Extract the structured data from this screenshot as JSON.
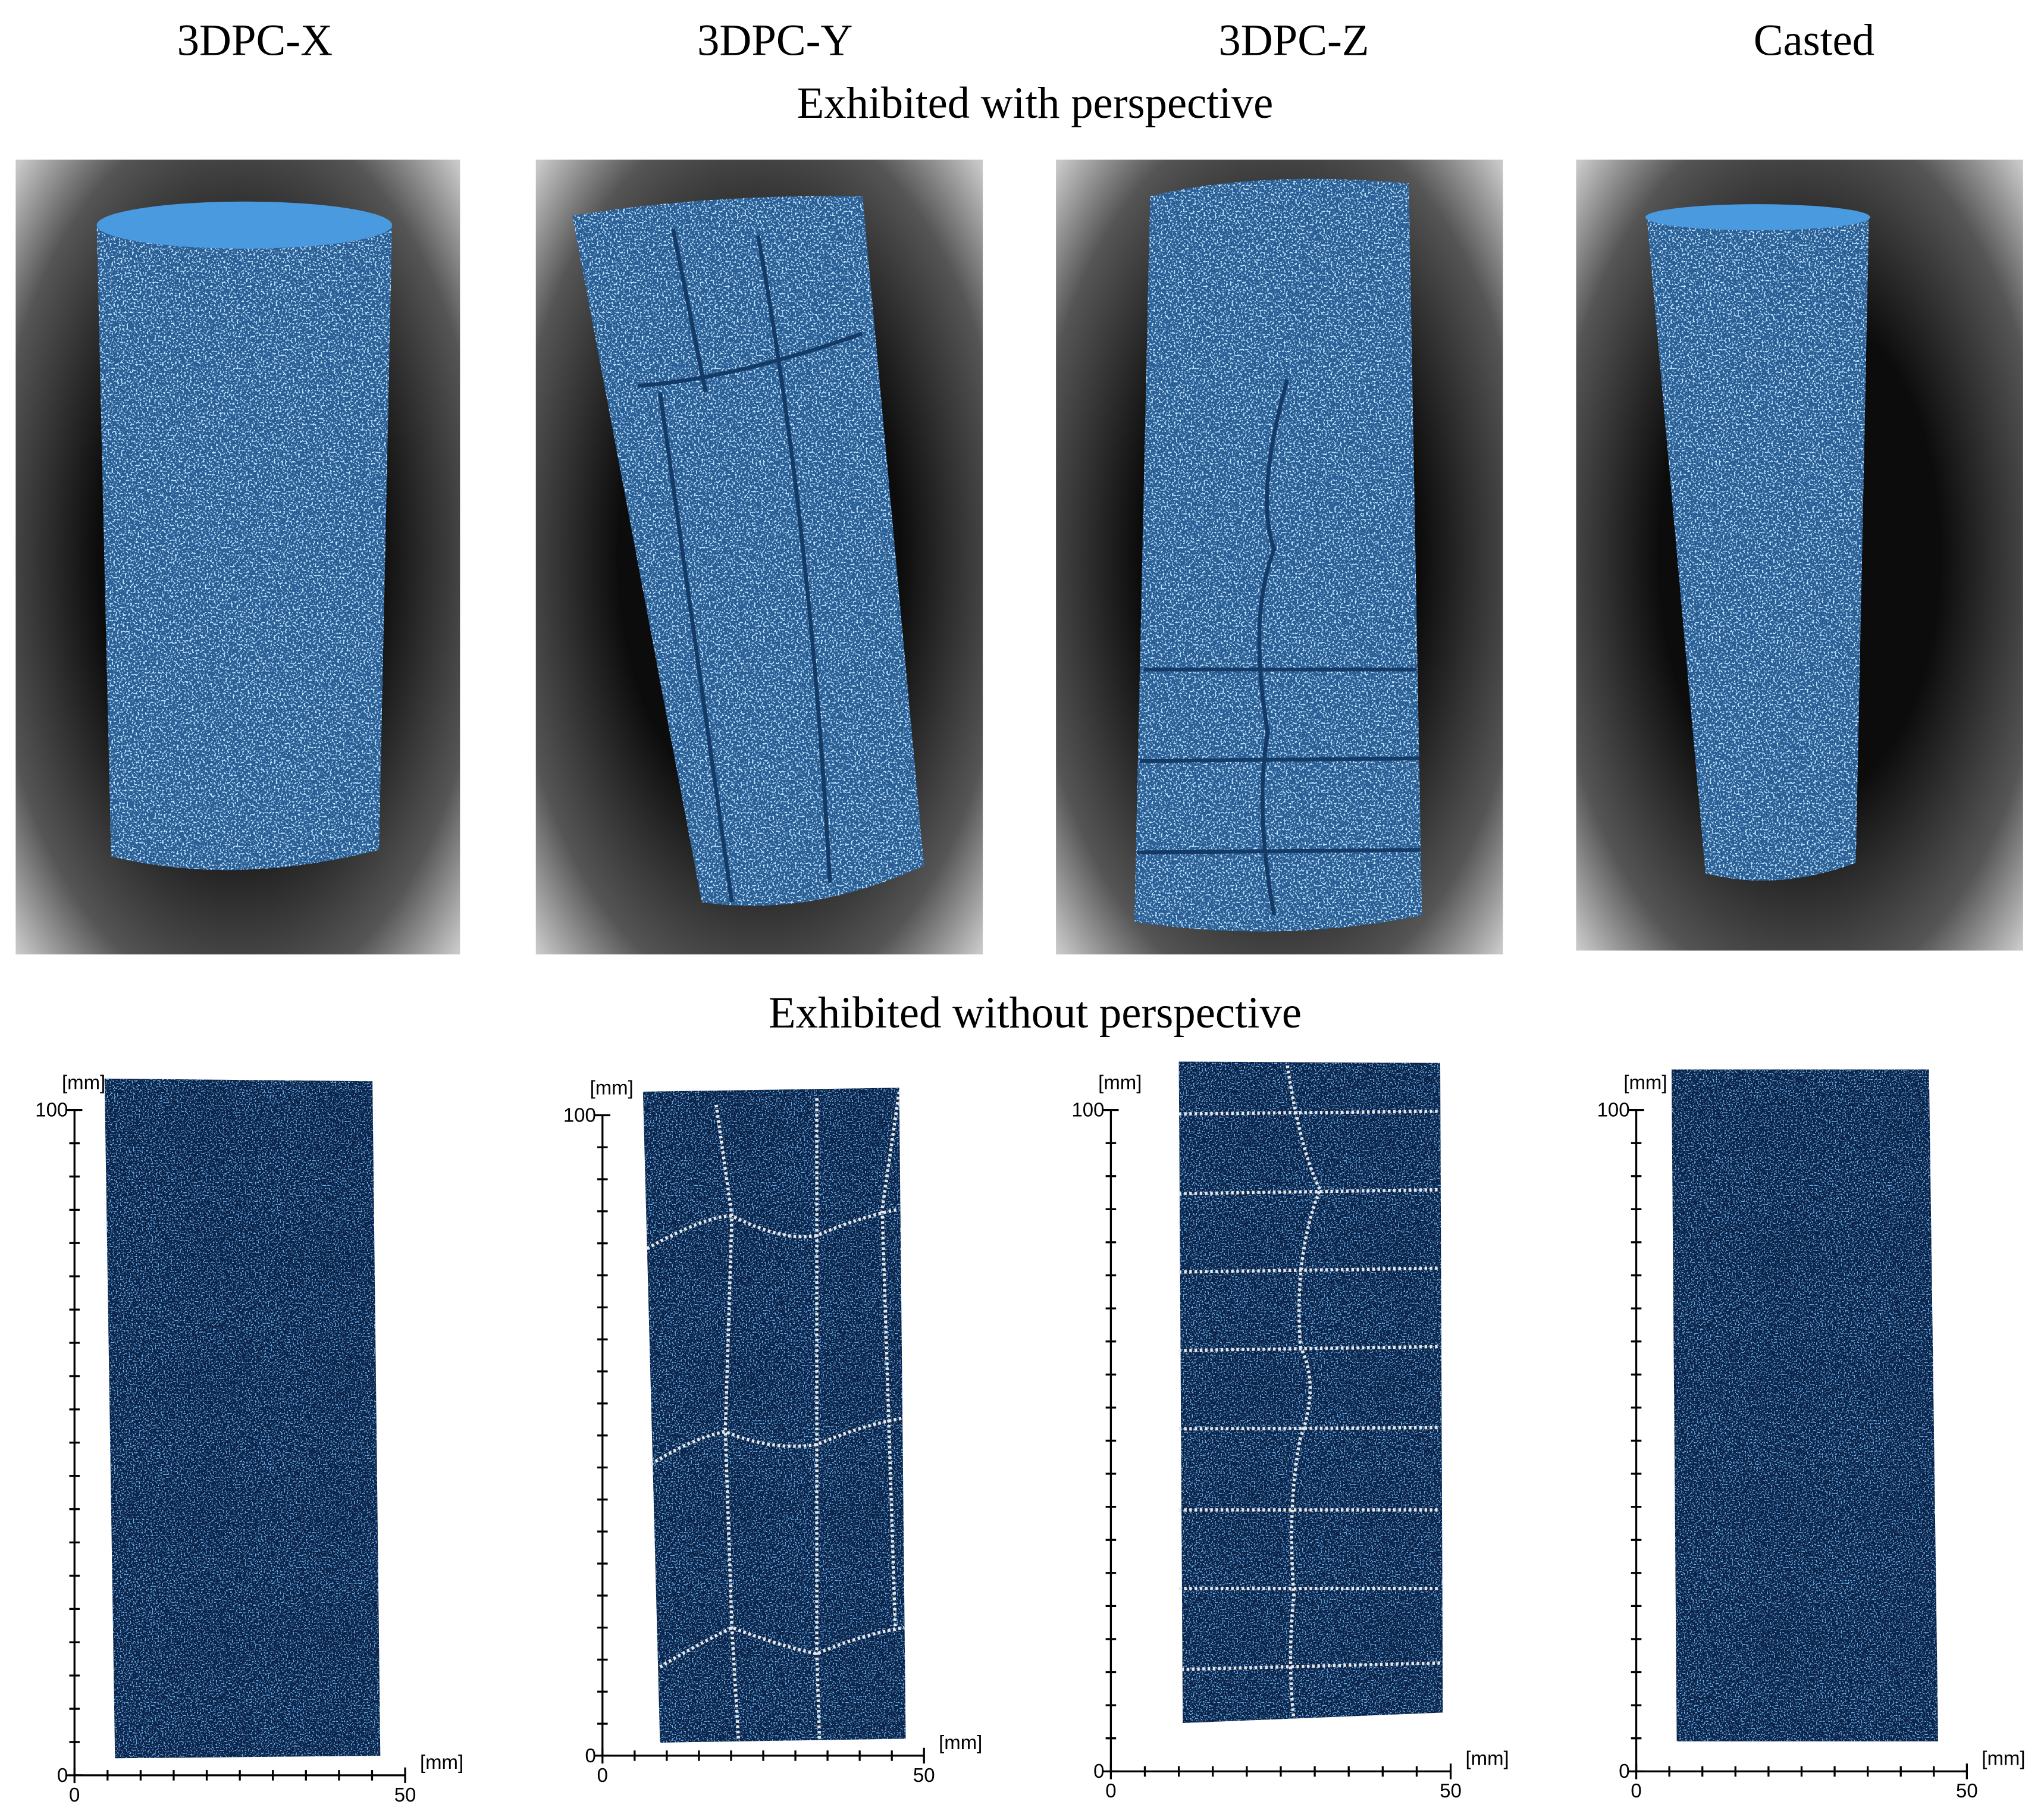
{
  "columns": [
    "3DPC-X",
    "3DPC-Y",
    "3DPC-Z",
    "Casted"
  ],
  "row_titles": [
    "Exhibited with perspective",
    "Exhibited without perspective"
  ],
  "plots": [
    {
      "y_unit": "[mm]",
      "x_unit": "[mm]",
      "xlim": [
        0,
        50
      ],
      "ylim": [
        0,
        100
      ],
      "xticks": [
        0,
        50
      ],
      "yticks": [
        0,
        100
      ]
    },
    {
      "y_unit": "[mm]",
      "x_unit": "[mm]",
      "xlim": [
        0,
        50
      ],
      "ylim": [
        0,
        100
      ],
      "xticks": [
        0,
        50
      ],
      "yticks": [
        0,
        100
      ]
    },
    {
      "y_unit": "[mm]",
      "x_unit": "[mm]",
      "xlim": [
        0,
        50
      ],
      "ylim": [
        0,
        100
      ],
      "xticks": [
        0,
        50
      ],
      "yticks": [
        0,
        100
      ]
    },
    {
      "y_unit": "[mm]",
      "x_unit": "[mm]",
      "xlim": [
        0,
        50
      ],
      "ylim": [
        0,
        100
      ],
      "xticks": [
        0,
        50
      ],
      "yticks": [
        0,
        100
      ]
    }
  ]
}
